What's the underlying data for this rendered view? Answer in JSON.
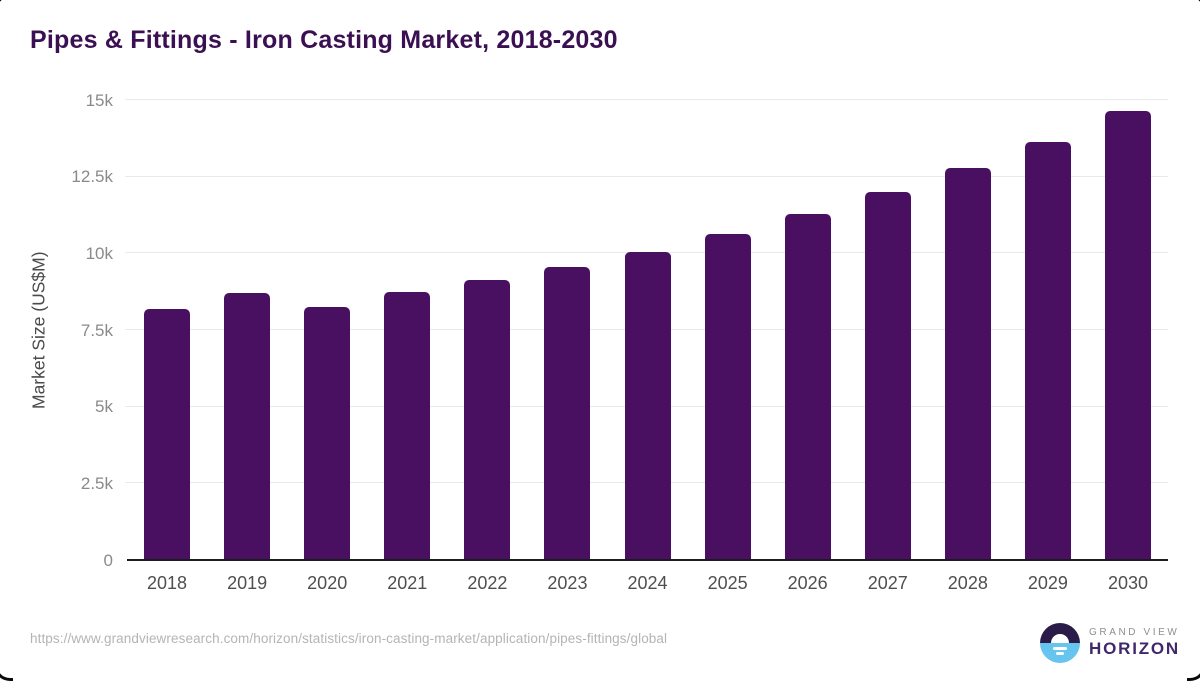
{
  "chart_data": {
    "type": "bar",
    "title": "Pipes & Fittings - Iron Casting Market, 2018-2030",
    "categories": [
      "2018",
      "2019",
      "2020",
      "2021",
      "2022",
      "2023",
      "2024",
      "2025",
      "2026",
      "2027",
      "2028",
      "2029",
      "2030"
    ],
    "values": [
      8200,
      8700,
      8250,
      8730,
      9130,
      9560,
      10060,
      10620,
      11280,
      12000,
      12780,
      13630,
      14640
    ],
    "xlabel": "",
    "ylabel": "Market Size (US$M)",
    "ylim": [
      0,
      15000
    ],
    "yticks": [
      {
        "label": "0",
        "value": 0
      },
      {
        "label": "2.5k",
        "value": 2500
      },
      {
        "label": "5k",
        "value": 5000
      },
      {
        "label": "7.5k",
        "value": 7500
      },
      {
        "label": "10k",
        "value": 10000
      },
      {
        "label": "12.5k",
        "value": 12500
      },
      {
        "label": "15k",
        "value": 15000
      }
    ],
    "grid": true,
    "legend": "none",
    "bar_color": "#491061"
  },
  "footer": {
    "source_url": "https://www.grandviewresearch.com/horizon/statistics/iron-casting-market/application/pipes-fittings/global",
    "logo": {
      "top_text": "GRAND VIEW",
      "bottom_text": "HORIZON"
    }
  },
  "colors": {
    "title": "#3b1053",
    "bar": "#491061",
    "gridline": "#e9e9e9",
    "axis_line": "#1c1c1c",
    "tick_label": "#8a8a8a",
    "x_label": "#4f4f4f",
    "y_axis_title": "#4a4a4a",
    "url_text": "#b4b4b4",
    "logo_dark": "#2b1b49",
    "logo_blue": "#66c5ef",
    "logo_purple_text": "#40286b"
  }
}
